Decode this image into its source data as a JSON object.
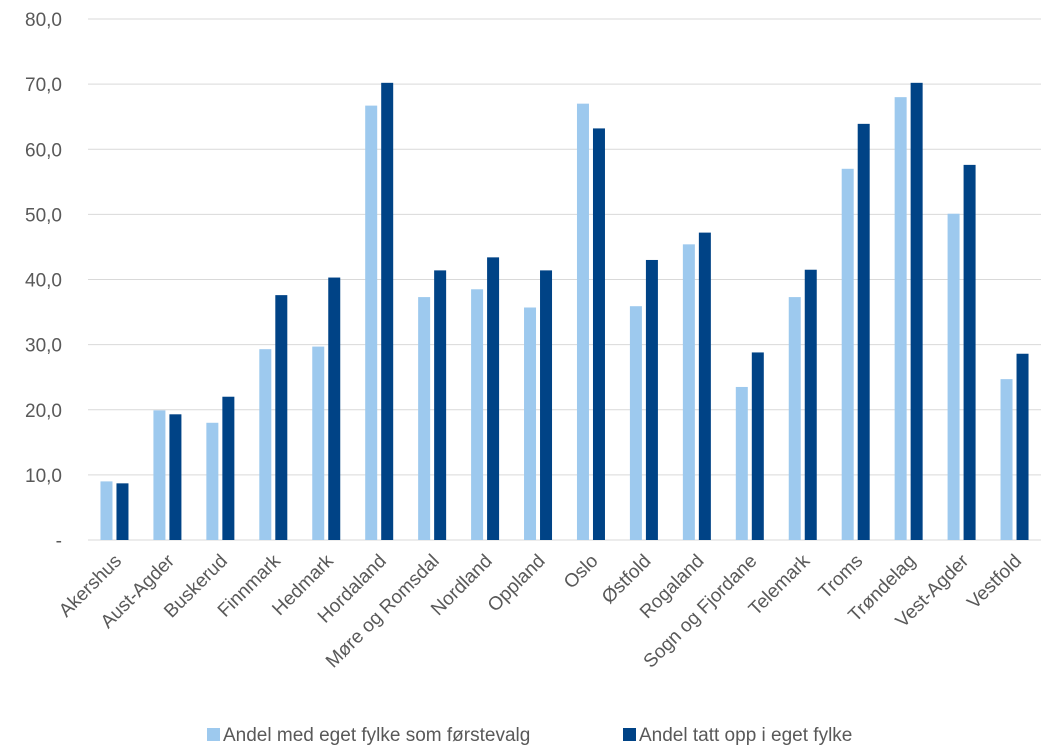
{
  "chart_data": {
    "type": "bar",
    "categories": [
      "Akershus",
      "Aust-Agder",
      "Buskerud",
      "Finnmark",
      "Hedmark",
      "Hordaland",
      "Møre og Romsdal",
      "Nordland",
      "Oppland",
      "Oslo",
      "Østfold",
      "Rogaland",
      "Sogn og Fjordane",
      "Telemark",
      "Troms",
      "Trøndelag",
      "Vest-Agder",
      "Vestfold"
    ],
    "series": [
      {
        "name": "Andel med eget fylke som førstevalg",
        "color": "#9dc9ee",
        "values": [
          9.0,
          19.9,
          18.0,
          29.3,
          29.7,
          66.7,
          37.3,
          38.5,
          35.7,
          67.0,
          35.9,
          45.4,
          23.5,
          37.3,
          57.0,
          68.0,
          50.1,
          24.7
        ]
      },
      {
        "name": "Andel tatt opp i eget fylke",
        "color": "#004386",
        "values": [
          8.7,
          19.3,
          22.0,
          37.6,
          40.3,
          70.2,
          41.4,
          43.4,
          41.4,
          63.2,
          43.0,
          47.2,
          28.8,
          41.5,
          63.9,
          70.2,
          57.6,
          28.6
        ]
      }
    ],
    "y_tick_labels": [
      "-",
      "10,0",
      "20,0",
      "30,0",
      "40,0",
      "50,0",
      "60,0",
      "70,0",
      "80,0"
    ],
    "ylim": [
      0,
      80
    ],
    "ytick_step": 10,
    "grid": true,
    "legend_position": "bottom",
    "gridline_color": "#d9d9d9"
  }
}
